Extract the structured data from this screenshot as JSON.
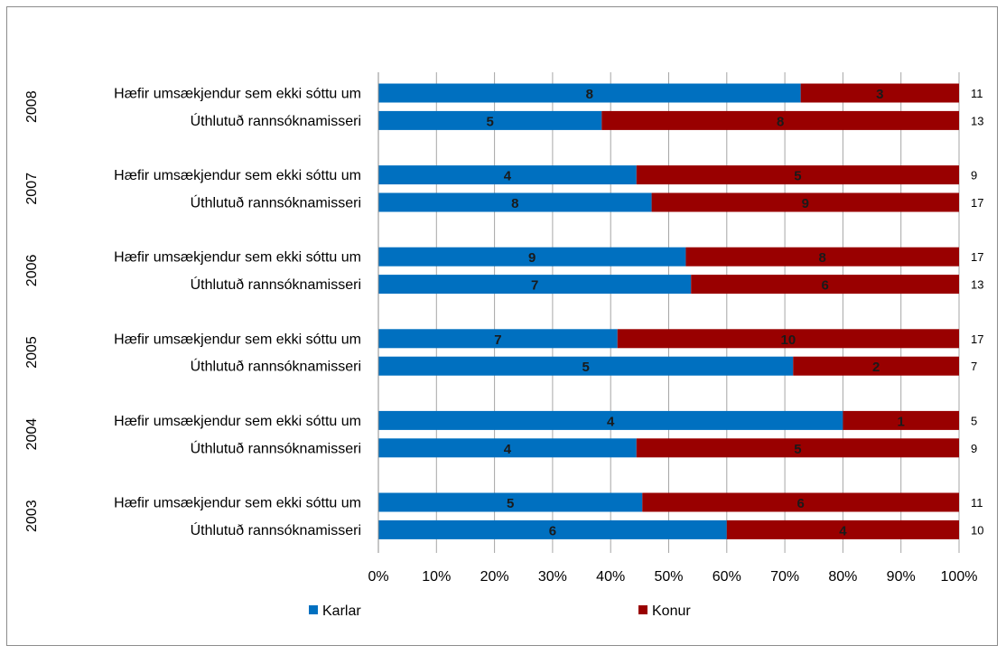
{
  "chart_data": {
    "type": "bar",
    "orientation": "horizontal",
    "stacking": "percent",
    "title": "",
    "xlabel": "",
    "ylabel": "",
    "xlim": [
      0,
      100
    ],
    "x_ticks": [
      "0%",
      "10%",
      "20%",
      "30%",
      "40%",
      "50%",
      "60%",
      "70%",
      "80%",
      "90%",
      "100%"
    ],
    "grid": "vertical",
    "legend_position": "bottom",
    "groups": [
      {
        "year": "2008",
        "rows": [
          {
            "label": "Hæfir umsækjendur sem ekki sóttu um",
            "karlar": 8,
            "konur": 3,
            "total": 11
          },
          {
            "label": "Úthlutuð rannsóknamisseri",
            "karlar": 5,
            "konur": 8,
            "total": 13
          }
        ]
      },
      {
        "year": "2007",
        "rows": [
          {
            "label": "Hæfir umsækjendur sem ekki sóttu um",
            "karlar": 4,
            "konur": 5,
            "total": 9
          },
          {
            "label": "Úthlutuð rannsóknamisseri",
            "karlar": 8,
            "konur": 9,
            "total": 17
          }
        ]
      },
      {
        "year": "2006",
        "rows": [
          {
            "label": "Hæfir umsækjendur sem ekki sóttu um",
            "karlar": 9,
            "konur": 8,
            "total": 17
          },
          {
            "label": "Úthlutuð rannsóknamisseri",
            "karlar": 7,
            "konur": 6,
            "total": 13
          }
        ]
      },
      {
        "year": "2005",
        "rows": [
          {
            "label": "Hæfir umsækjendur sem ekki sóttu um",
            "karlar": 7,
            "konur": 10,
            "total": 17
          },
          {
            "label": "Úthlutuð rannsóknamisseri",
            "karlar": 5,
            "konur": 2,
            "total": 7
          }
        ]
      },
      {
        "year": "2004",
        "rows": [
          {
            "label": "Hæfir umsækjendur sem ekki sóttu um",
            "karlar": 4,
            "konur": 1,
            "total": 5
          },
          {
            "label": "Úthlutuð rannsóknamisseri",
            "karlar": 4,
            "konur": 5,
            "total": 9
          }
        ]
      },
      {
        "year": "2003",
        "rows": [
          {
            "label": "Hæfir umsækjendur sem ekki sóttu um",
            "karlar": 5,
            "konur": 6,
            "total": 11
          },
          {
            "label": "Úthlutuð rannsóknamisseri",
            "karlar": 6,
            "konur": 4,
            "total": 10
          }
        ]
      }
    ],
    "series": [
      {
        "name": "Karlar",
        "key": "karlar",
        "color": "#0070c0"
      },
      {
        "name": "Konur",
        "key": "konur",
        "color": "#990000"
      }
    ]
  }
}
